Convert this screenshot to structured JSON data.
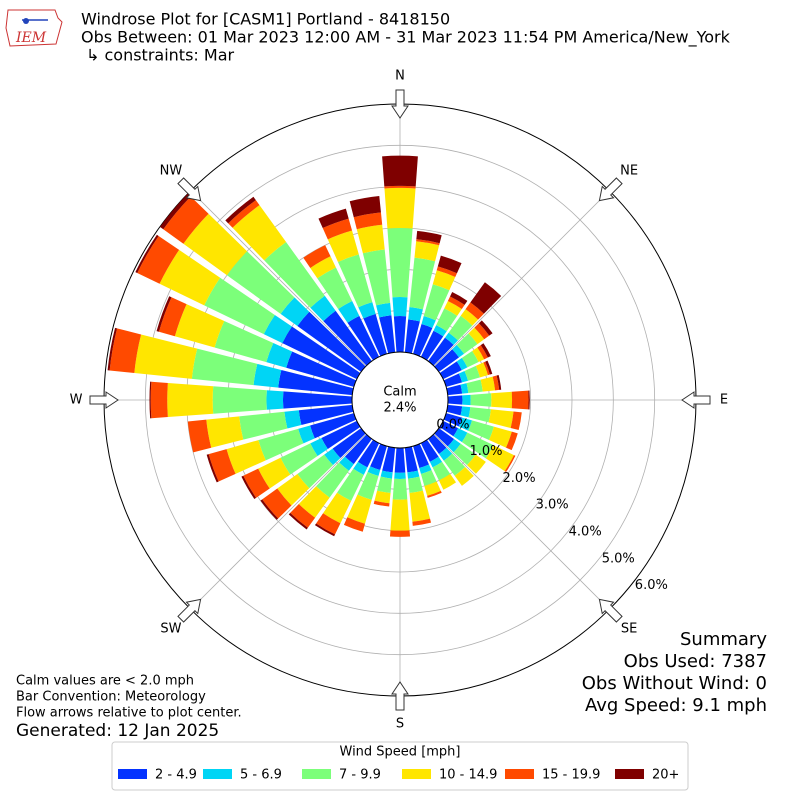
{
  "chart_data": {
    "type": "windrose",
    "logo_text": "IEM",
    "title": "Windrose Plot for [CASM1] Portland - 8418150",
    "subtitle": "Obs Between: 01 Mar 2023 12:00 AM - 31 Mar 2023 11:54 PM America/New_York",
    "constraints": "↳ constraints: Mar",
    "direction_labels": [
      "N",
      "NE",
      "E",
      "SE",
      "S",
      "SW",
      "W",
      "NW"
    ],
    "calm": {
      "label": "Calm",
      "value": 2.4,
      "value_label": "2.4%"
    },
    "rlim": [
      0,
      6
    ],
    "rticks": [
      {
        "value": 0,
        "label": "0.0%"
      },
      {
        "value": 1,
        "label": "1.0%"
      },
      {
        "value": 2,
        "label": "2.0%"
      },
      {
        "value": 3,
        "label": "3.0%"
      },
      {
        "value": 4,
        "label": "4.0%"
      },
      {
        "value": 5,
        "label": "5.0%"
      },
      {
        "value": 6,
        "label": "6.0%"
      }
    ],
    "theta": [
      0,
      10,
      20,
      30,
      40,
      50,
      60,
      70,
      80,
      90,
      100,
      110,
      120,
      130,
      140,
      150,
      160,
      170,
      180,
      190,
      200,
      210,
      220,
      230,
      240,
      250,
      260,
      270,
      280,
      290,
      300,
      310,
      320,
      330,
      340,
      350
    ],
    "legend_title": "Wind Speed [mph]",
    "series": [
      {
        "name": "2 - 4.9",
        "color": "#0433ff",
        "values": [
          0.87,
          0.8,
          0.75,
          0.7,
          0.7,
          0.6,
          0.5,
          0.4,
          0.35,
          0.35,
          0.35,
          0.4,
          0.4,
          0.45,
          0.45,
          0.5,
          0.55,
          0.6,
          0.6,
          0.6,
          0.6,
          0.65,
          0.75,
          0.85,
          0.95,
          1.1,
          1.3,
          1.67,
          1.8,
          1.7,
          2.0,
          1.9,
          1.5,
          1.1,
          1.0,
          0.9
        ]
      },
      {
        "name": "5 - 6.9",
        "color": "#00d5f5",
        "values": [
          0.46,
          0.3,
          0.2,
          0.15,
          0.15,
          0.15,
          0.15,
          0.15,
          0.15,
          0.2,
          0.2,
          0.25,
          0.25,
          0.2,
          0.2,
          0.15,
          0.15,
          0.15,
          0.15,
          0.15,
          0.15,
          0.2,
          0.2,
          0.25,
          0.3,
          0.3,
          0.35,
          0.4,
          0.6,
          0.5,
          0.5,
          0.5,
          0.45,
          0.4,
          0.3,
          0.3
        ]
      },
      {
        "name": "7 - 9.9",
        "color": "#7cff7a",
        "values": [
          1.67,
          1.2,
          0.8,
          0.45,
          0.5,
          0.4,
          0.3,
          0.3,
          0.35,
          0.5,
          0.5,
          0.55,
          0.7,
          0.45,
          0.45,
          0.35,
          0.3,
          0.35,
          0.5,
          0.35,
          0.6,
          0.7,
          0.8,
          0.8,
          0.8,
          1.0,
          1.1,
          1.3,
          1.5,
          1.3,
          1.6,
          1.6,
          1.6,
          0.9,
          1.2,
          1.3
        ]
      },
      {
        "name": "10 - 14.9",
        "color": "#ffe600",
        "values": [
          0.97,
          0.4,
          0.35,
          0.2,
          0.2,
          0.2,
          0.15,
          0.2,
          0.3,
          0.5,
          0.55,
          0.45,
          0.55,
          0.3,
          0.3,
          0.25,
          0.25,
          0.7,
          0.75,
          0.25,
          0.6,
          0.6,
          0.6,
          0.6,
          0.6,
          0.8,
          0.8,
          1.1,
          1.4,
          1.0,
          1.2,
          1.3,
          1.1,
          0.3,
          0.6,
          0.6
        ]
      },
      {
        "name": "15 - 19.9",
        "color": "#ff4a00",
        "values": [
          0.05,
          0.05,
          0.1,
          0.12,
          0.2,
          0.15,
          0.1,
          0.05,
          0.1,
          0.4,
          0.2,
          0.15,
          0.04,
          0,
          0,
          0,
          0.05,
          0.1,
          0.15,
          0.08,
          0.2,
          0.3,
          0.3,
          0.45,
          0.4,
          0.45,
          0.45,
          0.4,
          0.6,
          0.4,
          0.6,
          0.6,
          0.15,
          0.3,
          0.3,
          0.3
        ]
      },
      {
        "name": "20+",
        "color": "#7f0000",
        "values": [
          0.73,
          0.2,
          0.27,
          0.12,
          0.6,
          0.1,
          0.08,
          0.06,
          0.05,
          0.03,
          0,
          0,
          0,
          0,
          0,
          0,
          0,
          0,
          0,
          0,
          0,
          0.05,
          0.05,
          0.05,
          0.05,
          0.05,
          0,
          0.03,
          0.05,
          0.06,
          0.05,
          0.1,
          0.1,
          0,
          0.25,
          0.4
        ]
      }
    ],
    "notes": [
      "Calm values are < 2.0 mph",
      "Bar Convention: Meteorology",
      "Flow arrows relative to plot center."
    ],
    "generated": "Generated: 12 Jan 2025",
    "summary": [
      "Summary",
      "Obs Used: 7387",
      "Obs Without Wind: 0",
      "Avg Speed: 9.1 mph"
    ]
  }
}
